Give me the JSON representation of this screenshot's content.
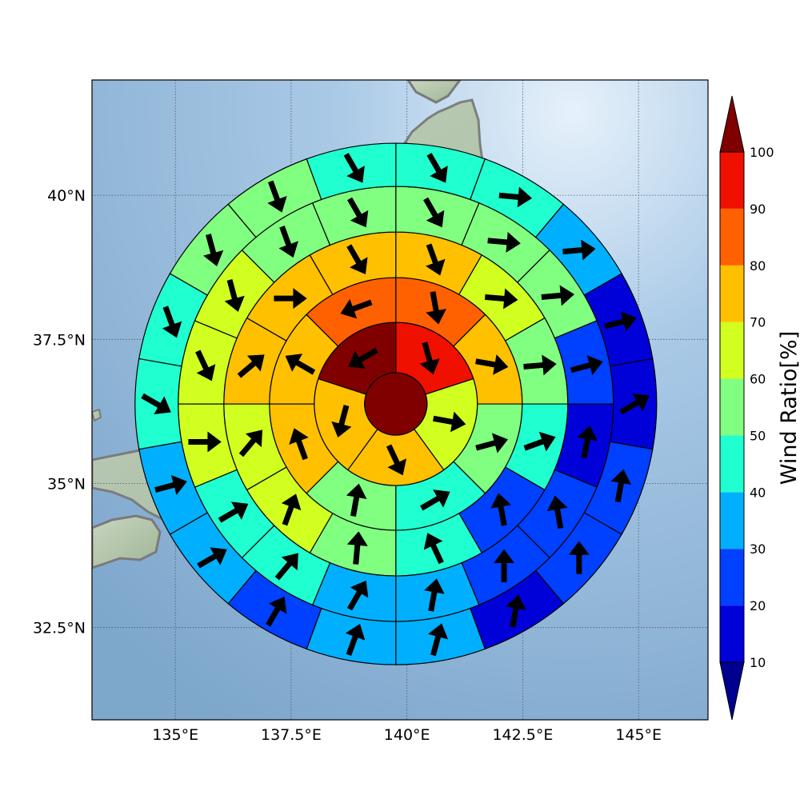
{
  "chart_data": {
    "type": "heatmap",
    "subtype": "polar sector map with wind vectors over a geographic basemap",
    "map": {
      "lon_range": [
        133.2,
        146.5
      ],
      "lat_range": [
        30.9,
        42.0
      ],
      "x_ticks": [
        {
          "value": 135.0,
          "label": "135°E"
        },
        {
          "value": 137.5,
          "label": "137.5°E"
        },
        {
          "value": 140.0,
          "label": "140°E"
        },
        {
          "value": 142.5,
          "label": "142.5°E"
        },
        {
          "value": 145.0,
          "label": "145°E"
        }
      ],
      "y_ticks": [
        {
          "value": 32.5,
          "label": "32.5°N"
        },
        {
          "value": 35.0,
          "label": "35°N"
        },
        {
          "value": 37.5,
          "label": "37.5°N"
        },
        {
          "value": 40.0,
          "label": "40°N"
        }
      ],
      "grid": true,
      "grid_style": "dotted"
    },
    "polar_grid": {
      "center_lon": 139.76,
      "center_lat": 36.38,
      "inner_disk_value": 100,
      "rings": [
        {
          "ring": 1,
          "values": [
            90,
            65,
            70,
            70,
            100
          ]
        },
        {
          "ring": 2,
          "values": [
            80,
            70,
            55,
            45,
            55,
            70,
            70,
            80
          ]
        },
        {
          "ring": 3,
          "values": [
            70,
            65,
            55,
            45,
            25,
            40,
            55,
            65,
            65,
            70,
            70,
            70
          ]
        },
        {
          "ring": 4,
          "values": [
            55,
            55,
            55,
            25,
            15,
            25,
            25,
            35,
            35,
            45,
            45,
            65,
            65,
            65,
            55,
            55
          ]
        },
        {
          "ring": 5,
          "values": [
            45,
            45,
            35,
            15,
            15,
            25,
            25,
            15,
            35,
            35,
            25,
            35,
            35,
            45,
            45,
            55,
            55,
            45
          ]
        }
      ],
      "wind_direction_deg": {
        "ring1": [
          165,
          100,
          155,
          195,
          240
        ],
        "ring2": [
          170,
          100,
          75,
          60,
          10,
          340,
          300,
          250
        ],
        "ring3": [
          160,
          95,
          85,
          70,
          350,
          335,
          5,
          20,
          40,
          50,
          90,
          150
        ],
        "ring4": [
          150,
          95,
          85,
          75,
          10,
          350,
          0,
          10,
          30,
          40,
          60,
          90,
          155,
          165,
          160,
          150
        ],
        "ring5": [
          150,
          95,
          85,
          75,
          60,
          10,
          0,
          10,
          15,
          20,
          30,
          60,
          75,
          120,
          160,
          165,
          160,
          150
        ]
      }
    },
    "colorbar": {
      "label": "Wind Ratio[%]",
      "ticks": [
        10,
        20,
        30,
        40,
        50,
        60,
        70,
        80,
        90,
        100
      ],
      "extend": "both",
      "colors": [
        "#00008f",
        "#0000d8",
        "#0040ff",
        "#00b0ff",
        "#20ffd0",
        "#80ff80",
        "#d0ff20",
        "#ffc000",
        "#ff6000",
        "#f01000",
        "#800000"
      ]
    }
  }
}
